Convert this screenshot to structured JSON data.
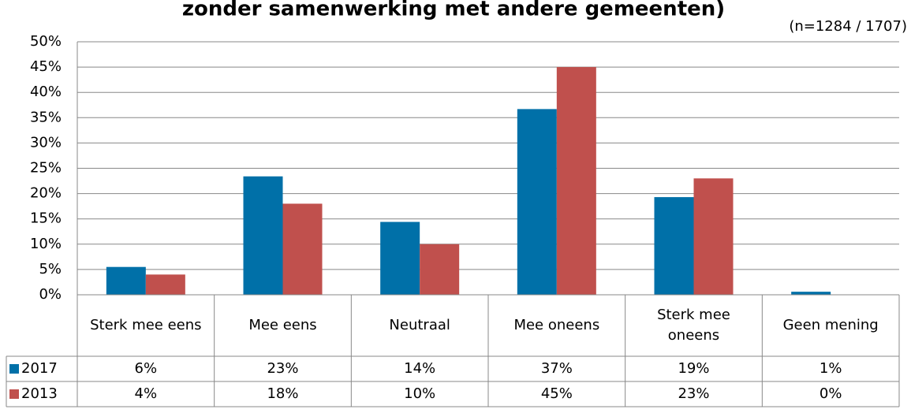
{
  "chart_data": {
    "type": "bar",
    "title": "zonder samenwerking met andere gemeenten)",
    "subtitle": "(n=1284 / 1707)",
    "categories": [
      "Sterk mee eens",
      "Mee eens",
      "Neutraal",
      "Mee oneens",
      "Sterk mee oneens",
      "Geen mening"
    ],
    "series": [
      {
        "name": "2017",
        "color": "#0070a8",
        "values": [
          5.5,
          23.4,
          14.4,
          36.7,
          19.3,
          0.6
        ],
        "value_labels": [
          "6%",
          "23%",
          "14%",
          "37%",
          "19%",
          "1%"
        ]
      },
      {
        "name": "2013",
        "color": "#c0504d",
        "values": [
          4,
          18,
          10,
          45,
          23,
          0
        ],
        "value_labels": [
          "4%",
          "18%",
          "10%",
          "45%",
          "23%",
          "0%"
        ]
      }
    ],
    "ylim": [
      0,
      50
    ],
    "yticks": [
      {
        "value": 0,
        "label": "0%"
      },
      {
        "value": 5,
        "label": "5%"
      },
      {
        "value": 10,
        "label": "10%"
      },
      {
        "value": 15,
        "label": "15%"
      },
      {
        "value": 20,
        "label": "20%"
      },
      {
        "value": 25,
        "label": "25%"
      },
      {
        "value": 30,
        "label": "30%"
      },
      {
        "value": 35,
        "label": "35%"
      },
      {
        "value": 40,
        "label": "40%"
      },
      {
        "value": 45,
        "label": "45%"
      },
      {
        "value": 50,
        "label": "50%"
      }
    ],
    "grid": true
  }
}
